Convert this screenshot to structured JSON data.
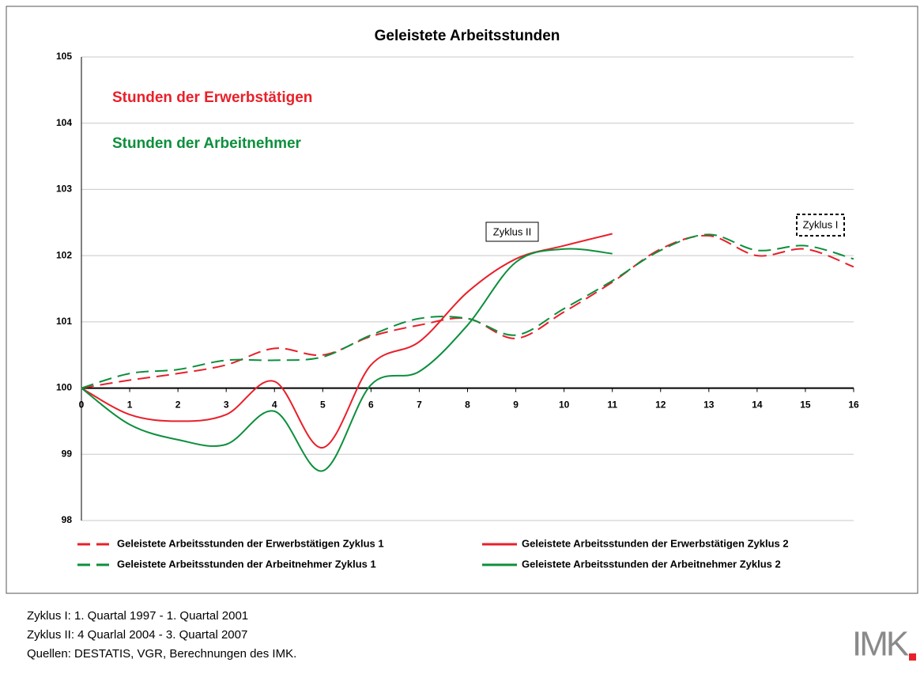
{
  "chart_data": {
    "type": "line",
    "title": "Geleistete Arbeitsstunden",
    "annotations": [
      "Stunden der Erwerbstätigen",
      "Stunden der Arbeitnehmer",
      "Zyklus II",
      "Zyklus I"
    ],
    "x": [
      0,
      1,
      2,
      3,
      4,
      5,
      6,
      7,
      8,
      9,
      10,
      11,
      12,
      13,
      14,
      15,
      16
    ],
    "xlim": [
      0,
      16
    ],
    "xticks": [
      0,
      1,
      2,
      3,
      4,
      5,
      6,
      7,
      8,
      9,
      10,
      11,
      12,
      13,
      14,
      15,
      16
    ],
    "ylim": [
      98,
      105
    ],
    "yticks": [
      98,
      99,
      100,
      101,
      102,
      103,
      104,
      105
    ],
    "grid": true,
    "legend": "bottom",
    "series": [
      {
        "name": "Geleistete Arbeitsstunden der Erwerbstätigen Zyklus 1",
        "color": "#e8202a",
        "dash": true,
        "values": [
          100,
          100.12,
          100.22,
          100.35,
          100.6,
          100.5,
          100.78,
          100.95,
          101.05,
          100.75,
          101.15,
          101.6,
          102.1,
          102.3,
          102.0,
          102.1,
          101.83
        ]
      },
      {
        "name": "Geleistete Arbeitsstunden der Erwerbstätigen Zyklus 2",
        "color": "#e8202a",
        "dash": false,
        "values": [
          100,
          99.6,
          99.5,
          99.6,
          100.1,
          99.1,
          100.35,
          100.7,
          101.45,
          101.95,
          102.15,
          102.33,
          null,
          null,
          null,
          null,
          null
        ]
      },
      {
        "name": "Geleistete Arbeitsstunden der Arbeitnehmer Zyklus 1",
        "color": "#0c8f3c",
        "dash": true,
        "values": [
          100,
          100.22,
          100.28,
          100.42,
          100.42,
          100.47,
          100.8,
          101.05,
          101.05,
          100.8,
          101.2,
          101.62,
          102.08,
          102.32,
          102.08,
          102.15,
          101.95
        ]
      },
      {
        "name": "Geleistete Arbeitsstunden der Arbeitnehmer Zyklus 2",
        "color": "#0c8f3c",
        "dash": false,
        "values": [
          100,
          99.45,
          99.22,
          99.15,
          99.65,
          98.75,
          100.05,
          100.25,
          100.95,
          101.9,
          102.1,
          102.03,
          null,
          null,
          null,
          null,
          null
        ]
      }
    ],
    "notes": [
      "Zyklus I: 1. Quartal 1997 - 1. Quartal 2001",
      "Zyklus II: 4 Quarlal 2004 - 3. Quartal 2007",
      "Quellen: DESTATIS, VGR, Berechnungen des IMK."
    ],
    "logo": "IMK"
  }
}
